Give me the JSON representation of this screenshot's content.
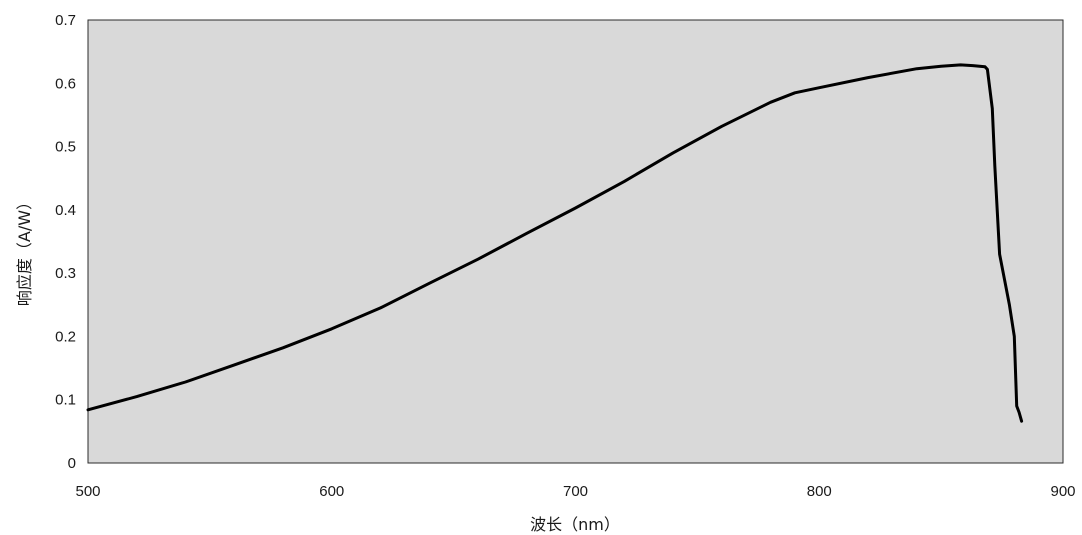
{
  "chart_data": {
    "type": "line",
    "title": "",
    "xlabel": "波长（nm）",
    "ylabel": "响应度（A/W）",
    "xlim": [
      500,
      900
    ],
    "ylim": [
      0,
      0.7
    ],
    "xticks": [
      500,
      600,
      700,
      800,
      900
    ],
    "yticks": [
      0,
      0.1,
      0.2,
      0.3,
      0.4,
      0.5,
      0.6,
      0.7
    ],
    "grid": false,
    "legend": "none",
    "plot_background": "#d9d9d9",
    "line_color": "#000000",
    "series": [
      {
        "x": [
          500,
          520,
          540,
          560,
          580,
          600,
          620,
          640,
          660,
          680,
          700,
          720,
          740,
          760,
          780,
          790,
          800,
          820,
          840,
          850,
          858,
          863,
          868,
          869,
          871,
          872,
          874,
          876,
          878,
          880,
          881,
          882,
          883
        ],
        "y": [
          0.084,
          0.105,
          0.128,
          0.155,
          0.182,
          0.212,
          0.245,
          0.284,
          0.322,
          0.363,
          0.403,
          0.445,
          0.49,
          0.532,
          0.57,
          0.585,
          0.593,
          0.609,
          0.623,
          0.627,
          0.629,
          0.628,
          0.626,
          0.622,
          0.56,
          0.47,
          0.33,
          0.29,
          0.25,
          0.2,
          0.09,
          0.08,
          0.066
        ]
      }
    ]
  }
}
